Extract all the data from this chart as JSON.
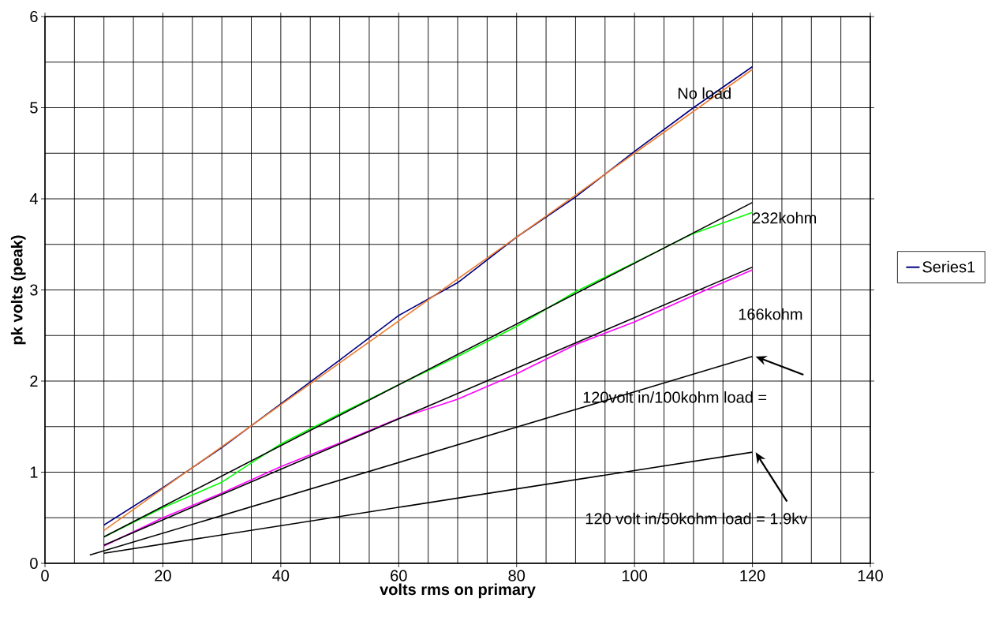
{
  "chart_data": {
    "type": "line",
    "xlabel": "volts rms on primary",
    "ylabel": "pk volts (peak)",
    "x": [
      10,
      20,
      30,
      40,
      50,
      60,
      70,
      80,
      90,
      100,
      110,
      120
    ],
    "series": [
      {
        "name": "Series1",
        "color": "#000080",
        "values": [
          0.42,
          0.83,
          1.27,
          1.75,
          2.23,
          2.72,
          3.08,
          3.58,
          4.02,
          4.52,
          5.0,
          5.45
        ]
      },
      {
        "color": "#ed7d31",
        "x": [
          10,
          120
        ],
        "values": [
          0.36,
          5.42
        ]
      },
      {
        "color": "#00ff00",
        "values": [
          0.29,
          0.61,
          0.89,
          1.31,
          1.64,
          1.96,
          2.27,
          2.6,
          2.98,
          3.3,
          3.62,
          3.85
        ]
      },
      {
        "color": "#000000",
        "x": [
          10,
          120
        ],
        "values": [
          0.29,
          3.96
        ]
      },
      {
        "color": "#ff00ff",
        "values": [
          0.19,
          0.5,
          0.77,
          1.06,
          1.32,
          1.59,
          1.8,
          2.08,
          2.4,
          2.65,
          2.94,
          3.22
        ]
      },
      {
        "color": "#000000",
        "x": [
          10,
          120
        ],
        "values": [
          0.2,
          3.25
        ]
      },
      {
        "color": "#000000",
        "x": [
          7.6,
          120
        ],
        "values": [
          0.09,
          2.27
        ]
      },
      {
        "color": "#000000",
        "x": [
          10,
          120
        ],
        "values": [
          0.11,
          1.22
        ]
      }
    ],
    "annotations": [
      "No load",
      "232kohm",
      "166kohm",
      "120volt in/100kohm load =",
      "120 volt in/50kohm load = 1.9kv"
    ],
    "xlim": [
      0,
      140
    ],
    "ylim": [
      0,
      6
    ],
    "xticks": [
      0,
      20,
      40,
      60,
      80,
      100,
      120,
      140
    ],
    "yticks": [
      0,
      1,
      2,
      3,
      4,
      5,
      6
    ],
    "grid": true,
    "legend": "right",
    "marker": "none",
    "line_style": "solid"
  }
}
